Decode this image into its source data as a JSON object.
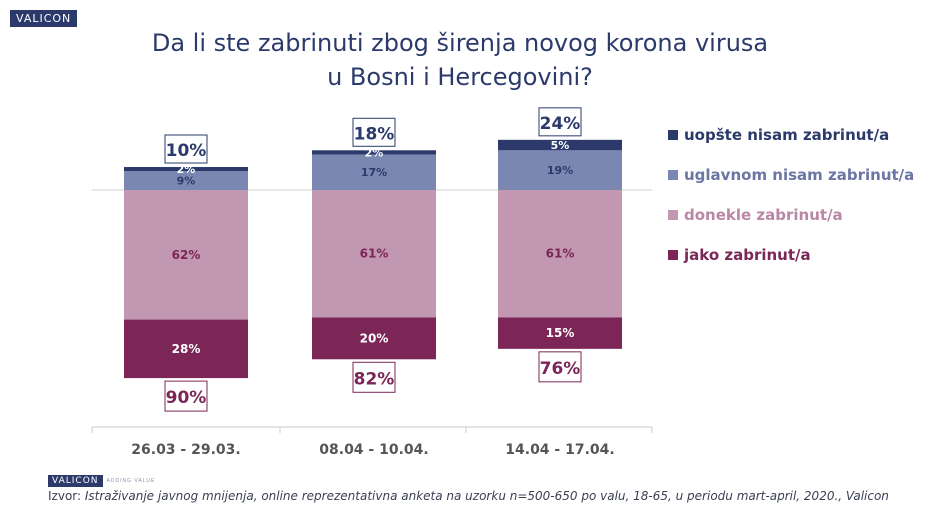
{
  "brand": {
    "logo": "VALICON",
    "tagline": "ADDING VALUE"
  },
  "chart_data": {
    "type": "bar",
    "stacked": true,
    "title": "Da li ste zabrinuti zbog širenja novog korona virusa u Bosni i Hercegovini?",
    "title_lines": [
      "Da li ste zabrinuti zbog širenja novog korona virusa",
      "u Bosni i Hercegovini?"
    ],
    "categories": [
      "26.03 - 29.03.",
      "08.04 - 10.04.",
      "14.04 - 17.04."
    ],
    "series": [
      {
        "name": "jako zabrinut/a",
        "values": [
          28,
          20,
          15
        ],
        "color": "#7b2657",
        "label_color": "#ffffff",
        "side": "below"
      },
      {
        "name": "donekle zabrinut/a",
        "values": [
          62,
          61,
          61
        ],
        "color": "#c197b1",
        "label_color": "#7b2657",
        "side": "below"
      },
      {
        "name": "uglavnom nisam zabrinut/a",
        "values": [
          9,
          17,
          19
        ],
        "color": "#7a87b0",
        "label_color": "#2b3a6b",
        "side": "above"
      },
      {
        "name": "uopšte nisam zabrinut/a",
        "values": [
          2,
          2,
          5
        ],
        "color": "#2b3a6b",
        "label_color": "#ffffff",
        "side": "above"
      }
    ],
    "value_labels": {
      "jako zabrinut/a": [
        "28%",
        "20%",
        "15%"
      ],
      "donekle zabrinut/a": [
        "62%",
        "61%",
        "61%"
      ],
      "uglavnom nisam zabrinut/a": [
        "9%",
        "17%",
        "19%"
      ],
      "uopšte nisam zabrinut/a": [
        "2%",
        "2%",
        "5%"
      ]
    },
    "totals_concerned": [
      "90%",
      "82%",
      "76%"
    ],
    "totals_not_concerned": [
      "10%",
      "18%",
      "24%"
    ],
    "legend_order": [
      "uopšte nisam zabrinut/a",
      "uglavnom nisam zabrinut/a",
      "donekle zabrinut/a",
      "jako zabrinut/a"
    ],
    "legend_position": "right",
    "xlabel": "",
    "ylabel": "",
    "grid": false
  },
  "source": {
    "prefix": "Izvor: ",
    "text": "Istraživanje javnog mnijenja, online reprezentativna anketa na uzorku n=500-650 po valu, 18-65, u periodu mart-april, 2020., Valicon"
  }
}
